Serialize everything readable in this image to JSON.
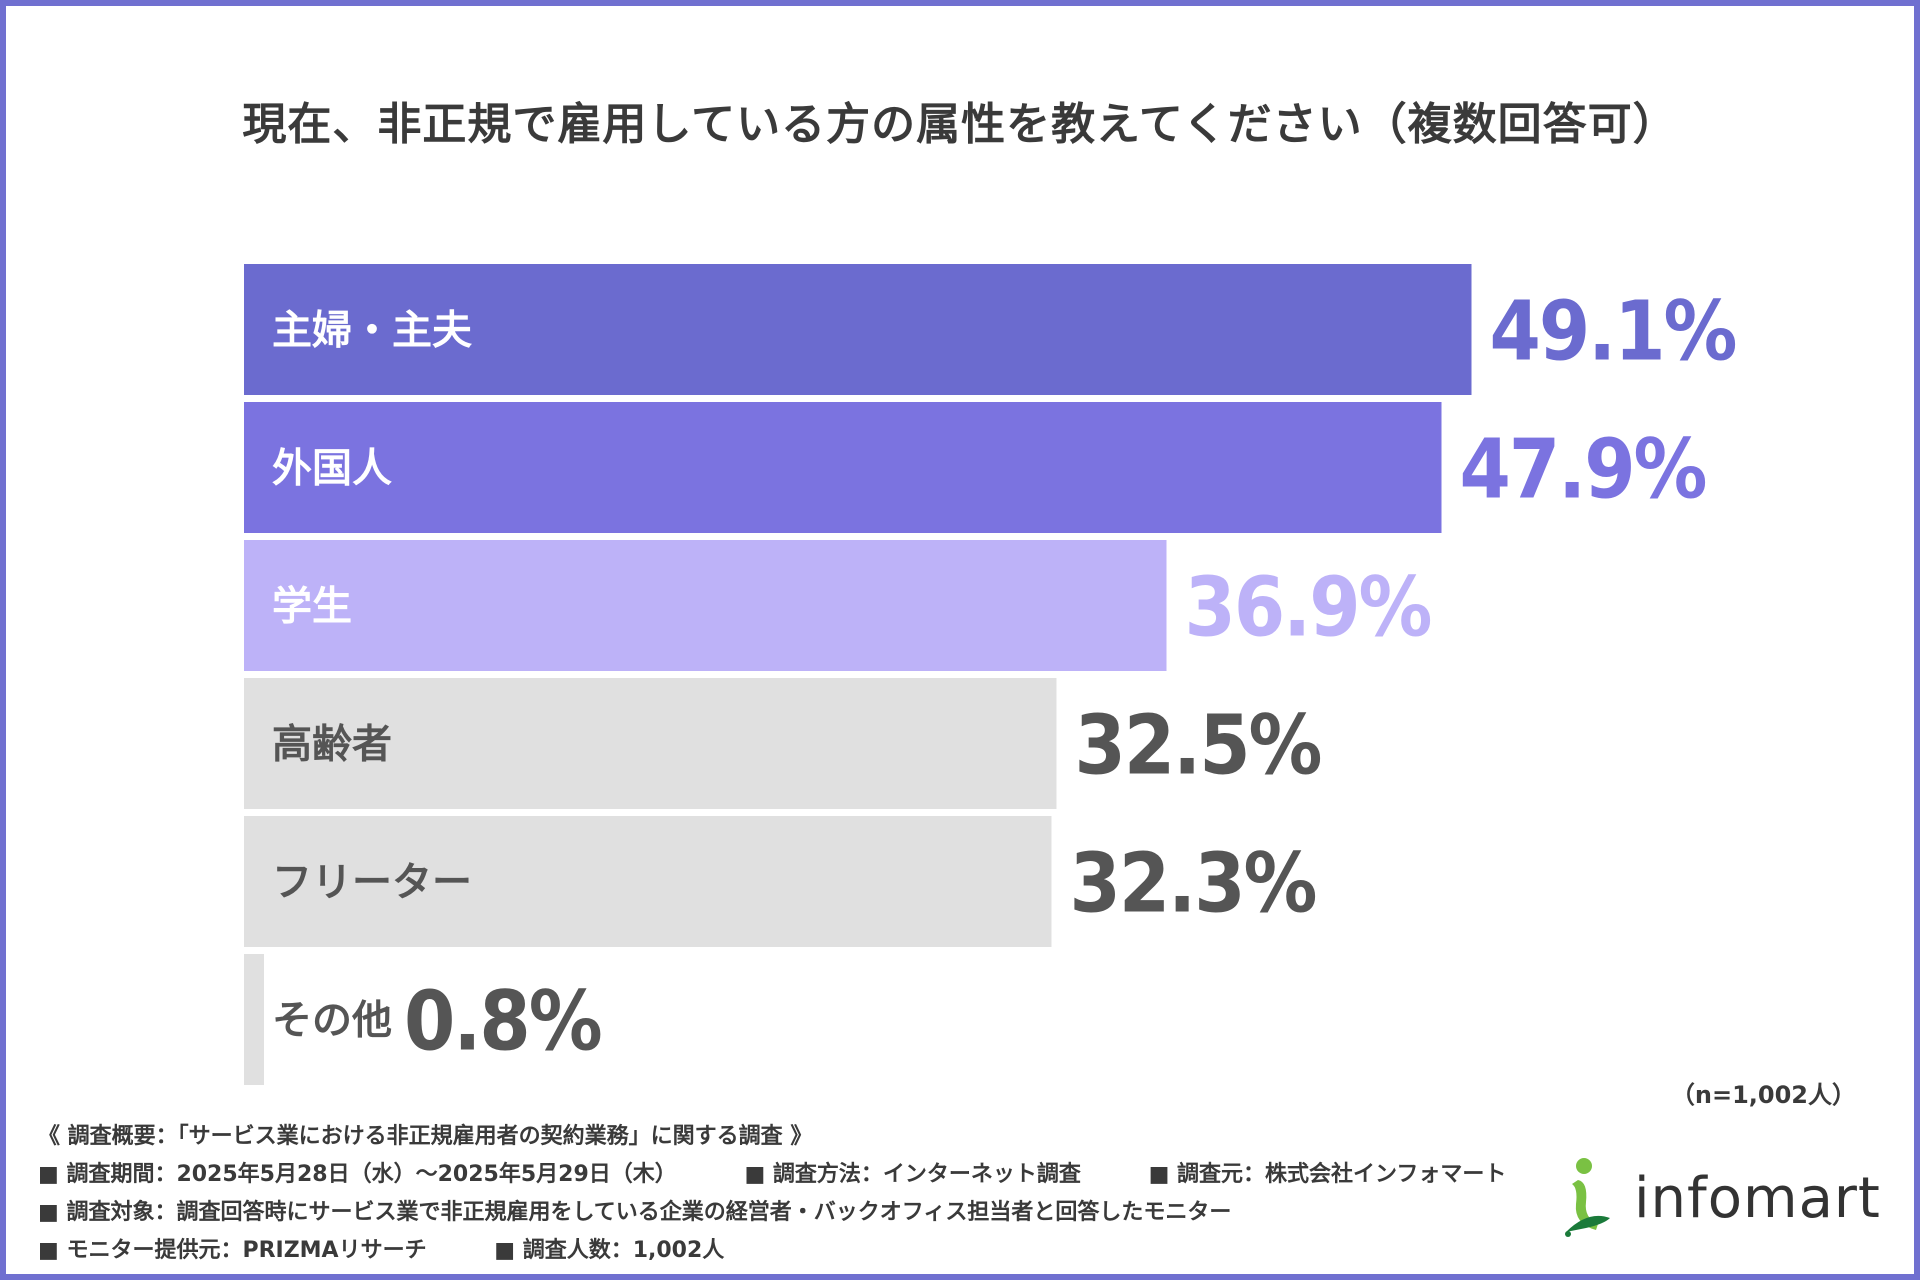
{
  "title": "現在、非正規で雇用している方の属性を教えてください（複数回答可）",
  "chart_data": {
    "type": "bar",
    "orientation": "horizontal",
    "title": "現在、非正規で雇用している方の属性を教えてください（複数回答可）",
    "categories": [
      "主婦・主夫",
      "外国人",
      "学生",
      "高齢者",
      "フリーター",
      "その他"
    ],
    "values": [
      49.1,
      47.9,
      36.9,
      32.5,
      32.3,
      0.8
    ],
    "value_labels": [
      "49.1%",
      "47.9%",
      "36.9%",
      "32.5%",
      "32.3%",
      "0.8%"
    ],
    "unit": "%",
    "xlim": [
      0,
      100
    ],
    "colors": [
      "#6b6bcf",
      "#7b73e0",
      "#bdb2f8",
      "#e0e0e0",
      "#e0e0e0",
      "#e0e0e0"
    ],
    "label_colors": [
      "#ffffff",
      "#ffffff",
      "#ffffff",
      "#555555",
      "#555555",
      "#555555"
    ],
    "value_colors": [
      "#6b6bcf",
      "#7b73e0",
      "#bdb2f8",
      "#555555",
      "#555555",
      "#555555"
    ]
  },
  "sample_size": "（n=1,002人）",
  "notes": {
    "heading": "《 調査概要：「サービス業における非正規雇用者の契約業務」に関する調査 》",
    "period": "■ 調査期間：2025年5月28日（水）～2025年5月29日（木）",
    "method": "■ 調査方法：インターネット調査",
    "source": "■ 調査元：株式会社インフォマート",
    "target": "■ 調査対象：調査回答時にサービス業で非正規雇用をしている企業の経営者・バックオフィス担当者と回答したモニター",
    "provider": "■ モニター提供元：PRIZMAリサーチ",
    "respondents": "■ 調査人数：1,002人"
  },
  "logo": {
    "text": "infomart",
    "colors": [
      "#7ac143",
      "#1a7a3a"
    ]
  }
}
